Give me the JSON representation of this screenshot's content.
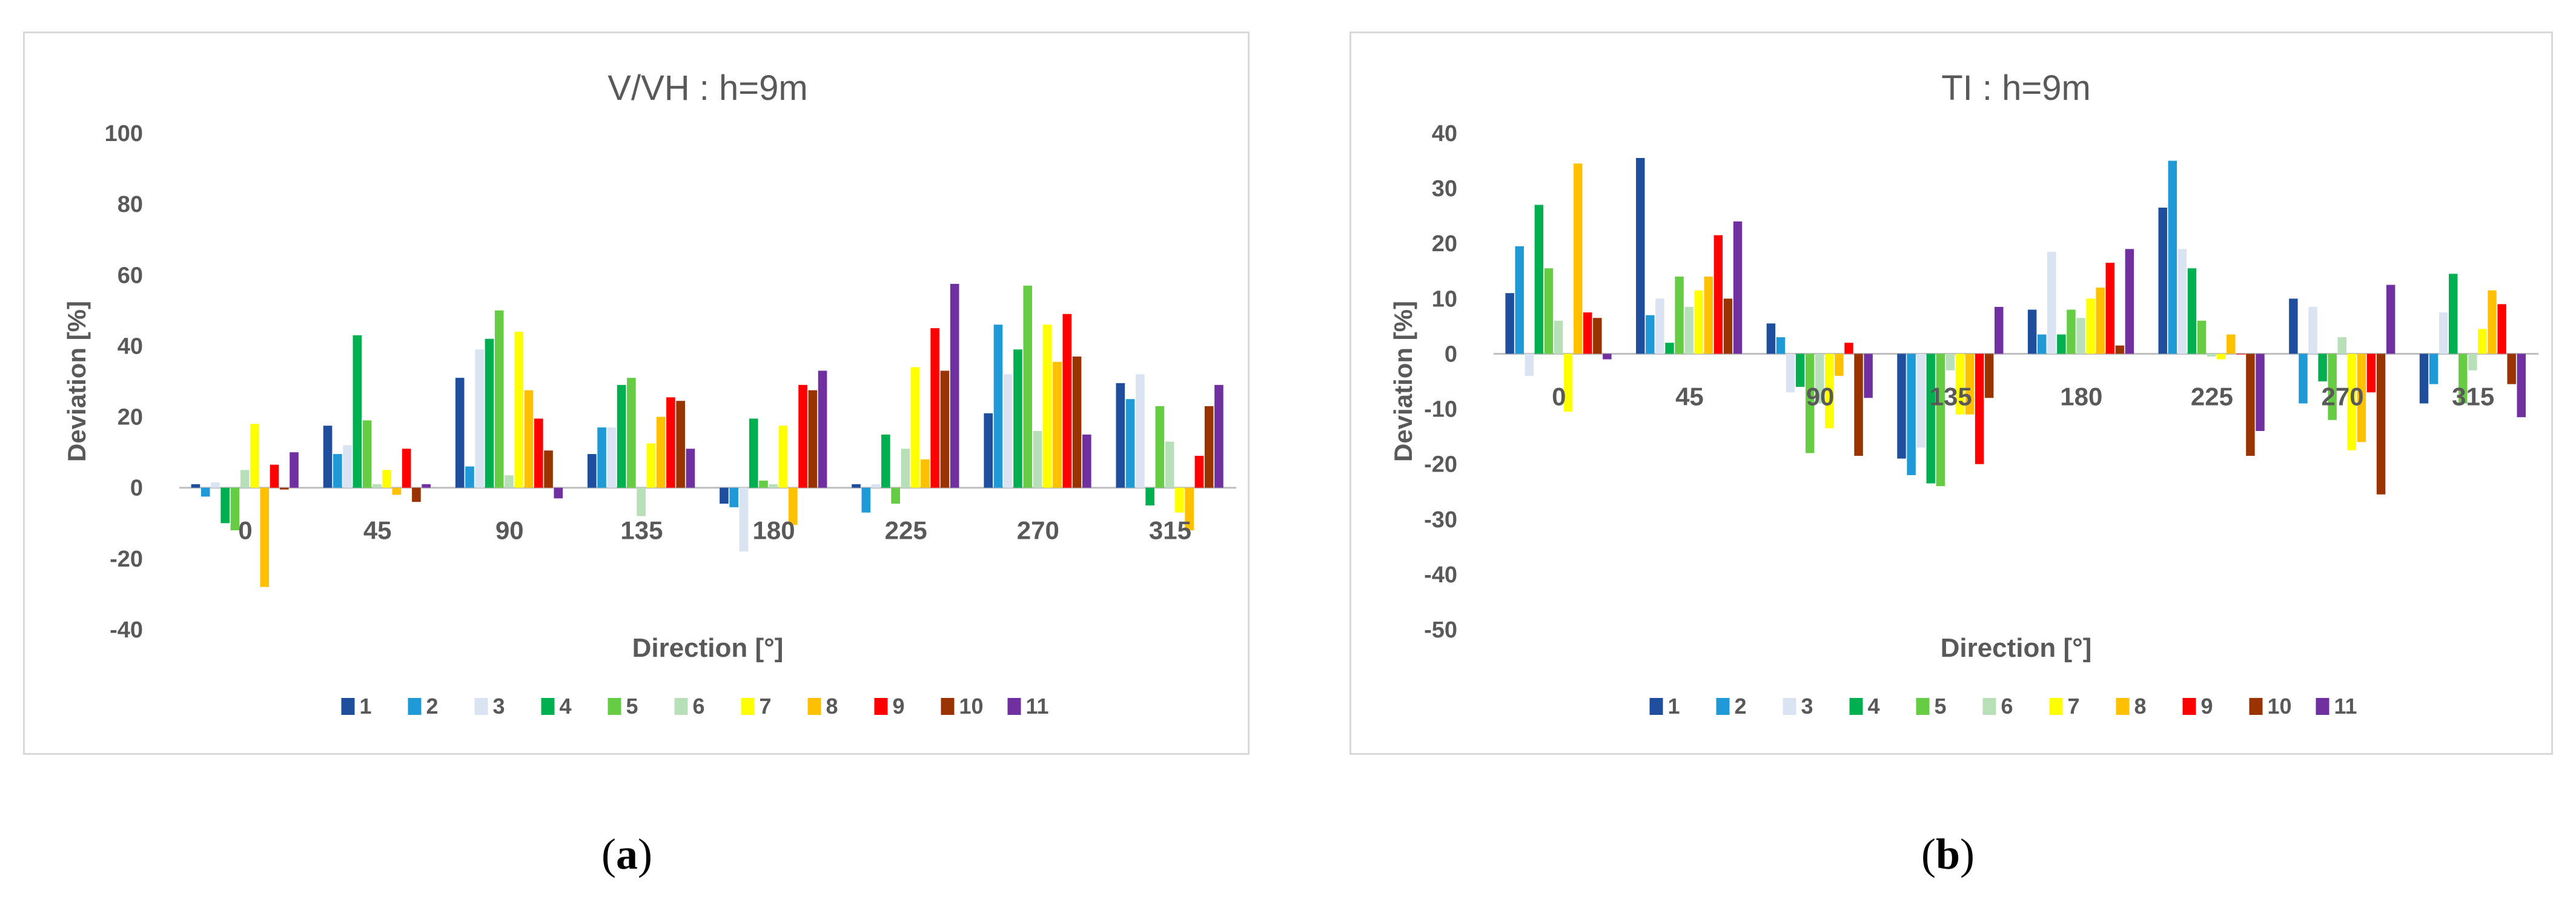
{
  "palette": [
    "#1f4e9c",
    "#1f9ad6",
    "#d9e3f2",
    "#00b050",
    "#66cc44",
    "#b8e0b8",
    "#ffff00",
    "#ffc000",
    "#ff0000",
    "#993300",
    "#7030a0"
  ],
  "legend_labels": [
    "1",
    "2",
    "3",
    "4",
    "5",
    "6",
    "7",
    "8",
    "9",
    "10",
    "11"
  ],
  "chart_data": [
    {
      "type": "bar",
      "title": "V/VH : h=9m",
      "xlabel": "Direction [°]",
      "ylabel": "Deviation [%]",
      "subfigure_label": "a",
      "categories": [
        "0",
        "45",
        "90",
        "135",
        "180",
        "225",
        "270",
        "315"
      ],
      "ylim": [
        -40,
        100
      ],
      "yticks": [
        100,
        80,
        60,
        40,
        20,
        0,
        -20,
        -40
      ],
      "legend_position": "bottom",
      "grid": false,
      "series": [
        {
          "name": "1",
          "values": [
            1,
            17.5,
            31,
            9.5,
            -4.5,
            1,
            21,
            29.5
          ]
        },
        {
          "name": "2",
          "values": [
            -2.5,
            9.5,
            6,
            17,
            -5.5,
            -7,
            46,
            25
          ]
        },
        {
          "name": "3",
          "values": [
            1.5,
            12,
            39,
            17,
            -18,
            1,
            32,
            32
          ]
        },
        {
          "name": "4",
          "values": [
            -10,
            43,
            42,
            29,
            19.5,
            15,
            39,
            -5
          ]
        },
        {
          "name": "5",
          "values": [
            -12,
            19,
            50,
            31,
            2,
            -4.5,
            57,
            23
          ]
        },
        {
          "name": "6",
          "values": [
            5,
            1,
            3.5,
            -8,
            1,
            11,
            16,
            13
          ]
        },
        {
          "name": "7",
          "values": [
            18,
            5,
            44,
            12.5,
            17.5,
            34,
            46,
            -7
          ]
        },
        {
          "name": "8",
          "values": [
            -28,
            -2,
            27.5,
            20,
            -10.5,
            8,
            35.5,
            -12
          ]
        },
        {
          "name": "9",
          "values": [
            6.5,
            11,
            19.5,
            25.5,
            29,
            45,
            49,
            9
          ]
        },
        {
          "name": "10",
          "values": [
            -0.5,
            -4,
            10.5,
            24.5,
            27.5,
            33,
            37,
            23
          ]
        },
        {
          "name": "11",
          "values": [
            10,
            1,
            -3,
            11,
            33,
            57.5,
            15,
            29
          ]
        }
      ]
    },
    {
      "type": "bar",
      "title": "TI : h=9m",
      "xlabel": "Direction [°]",
      "ylabel": "Deviation [%]",
      "subfigure_label": "b",
      "categories": [
        "0",
        "45",
        "90",
        "135",
        "180",
        "225",
        "270",
        "315"
      ],
      "ylim": [
        -50,
        40
      ],
      "yticks": [
        40,
        30,
        20,
        10,
        0,
        -10,
        -20,
        -30,
        -40,
        -50
      ],
      "legend_position": "bottom",
      "grid": false,
      "series": [
        {
          "name": "1",
          "values": [
            11,
            35.5,
            5.5,
            -19,
            8,
            26.5,
            10,
            -9
          ]
        },
        {
          "name": "2",
          "values": [
            19.5,
            7,
            3,
            -22,
            3.5,
            35,
            -9,
            -5.5
          ]
        },
        {
          "name": "3",
          "values": [
            -4,
            10,
            -7,
            -17,
            18.5,
            19,
            8.5,
            7.5
          ]
        },
        {
          "name": "4",
          "values": [
            27,
            2,
            -6,
            -23.5,
            3.5,
            15.5,
            -5,
            14.5
          ]
        },
        {
          "name": "5",
          "values": [
            15.5,
            14,
            -18,
            -24,
            8,
            6,
            -12,
            -9
          ]
        },
        {
          "name": "6",
          "values": [
            6,
            8.5,
            -9,
            -3,
            6.5,
            -0.5,
            3,
            -3
          ]
        },
        {
          "name": "7",
          "values": [
            -10.5,
            11.5,
            -13.5,
            -11,
            10,
            -1,
            -17.5,
            4.5
          ]
        },
        {
          "name": "8",
          "values": [
            34.5,
            14,
            -4,
            -11,
            12,
            3.5,
            -16,
            11.5
          ]
        },
        {
          "name": "9",
          "values": [
            7.5,
            21.5,
            2,
            -20,
            16.5,
            0,
            -7,
            9
          ]
        },
        {
          "name": "10",
          "values": [
            6.5,
            10,
            -18.5,
            -8,
            1.5,
            -18.5,
            -25.5,
            -5.5
          ]
        },
        {
          "name": "11",
          "values": [
            -1,
            24,
            -8,
            8.5,
            19,
            -14,
            12.5,
            -11.5
          ]
        }
      ]
    }
  ]
}
